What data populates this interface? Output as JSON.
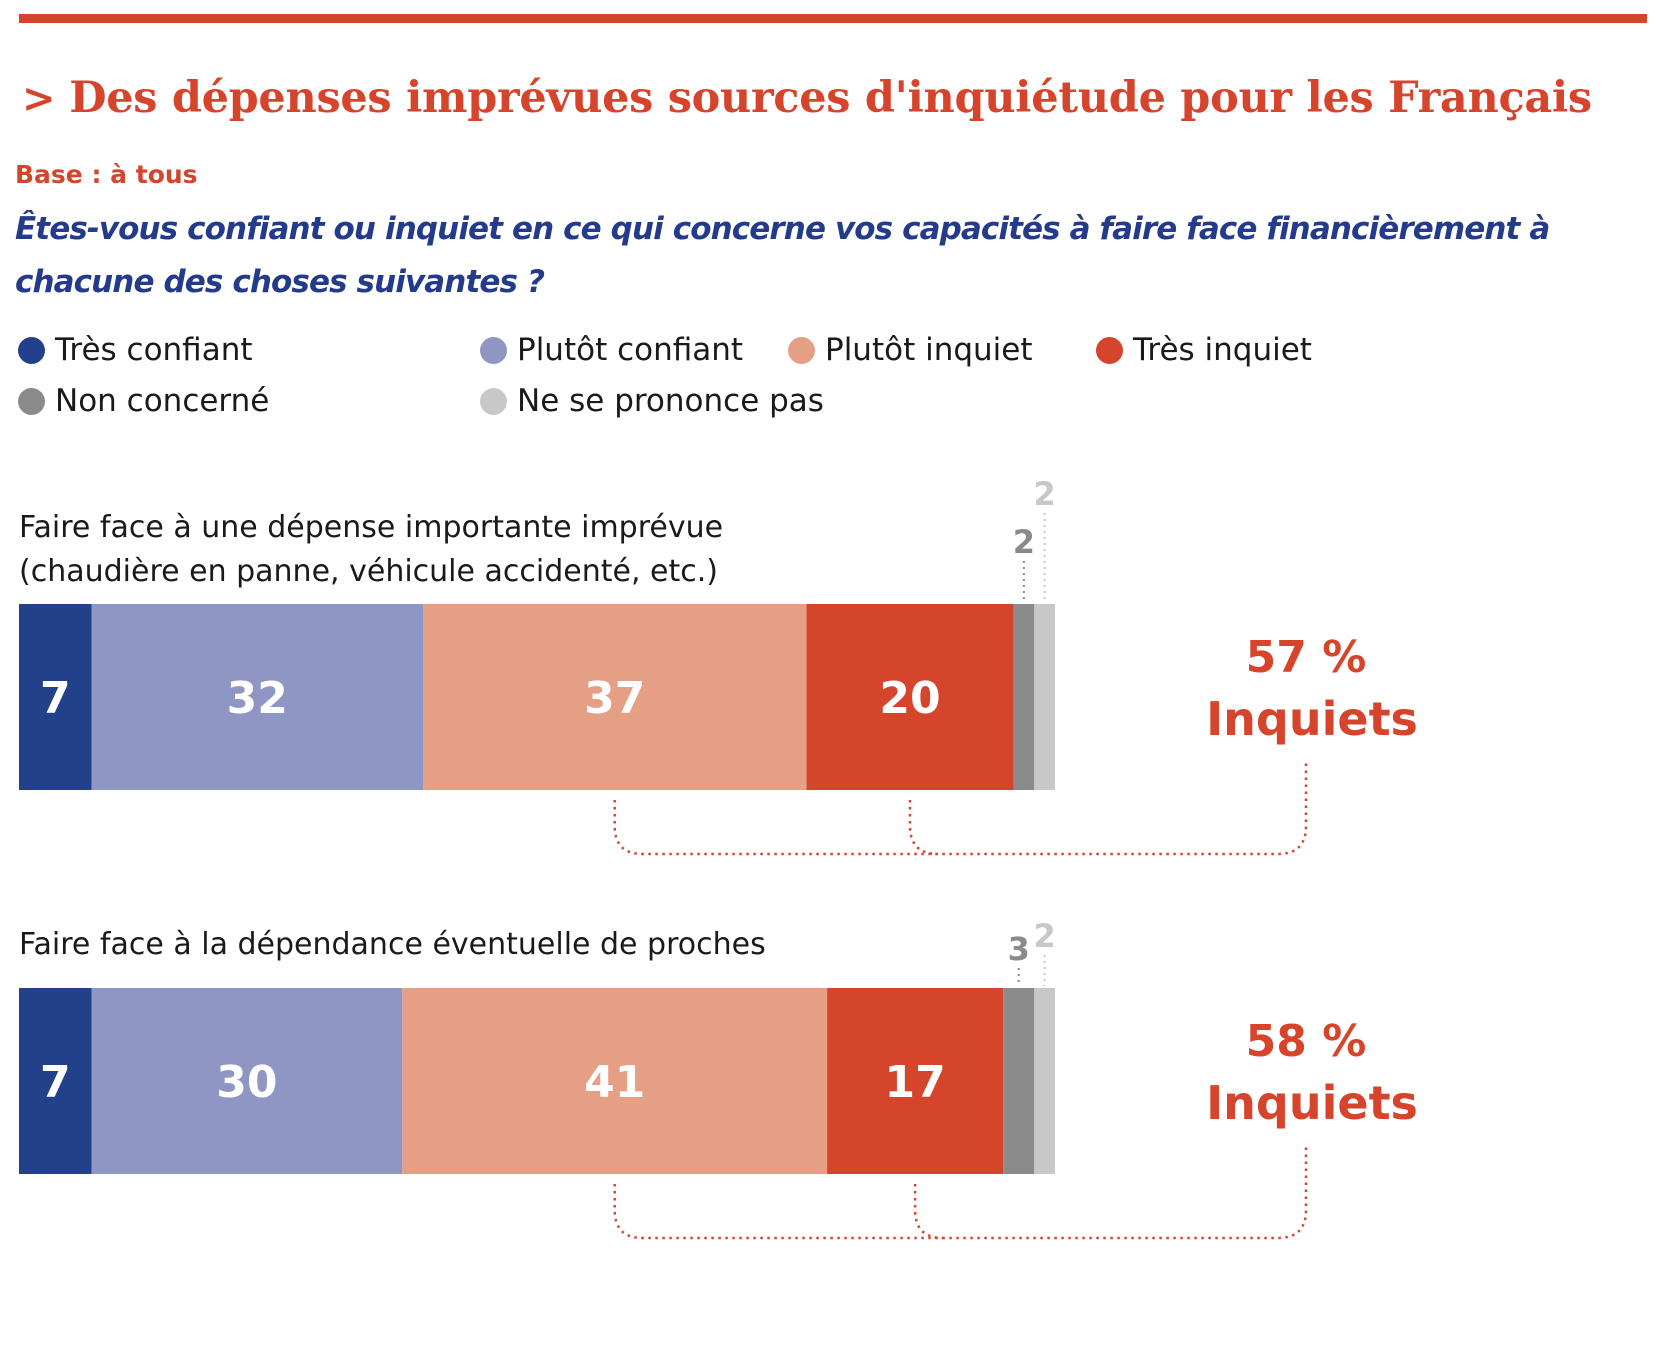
{
  "header": {
    "title": "Des dépenses imprévues sources d'inquiétude pour les Français",
    "base": "Base : à tous",
    "question": "Êtes-vous confiant ou inquiet en ce qui concerne vos capacités à faire face financièrement à chacune des choses suivantes ?"
  },
  "colors": {
    "accent": "#d7442c",
    "question": "#233b8a",
    "tres_confiant": "#23418b",
    "plutot_confiant": "#9096c4",
    "plutot_inquiet": "#e59f84",
    "tres_inquiet": "#d5452c",
    "non_concerne": "#8a8a8a",
    "nspp": "#c8c8c8"
  },
  "chart_data": {
    "type": "bar",
    "orientation": "horizontal",
    "stacked": true,
    "unit": "%",
    "legend_position": "top",
    "categories": [
      "Faire face à une dépense importante imprévue (chaudière en panne, véhicule accidenté, etc.)",
      "Faire face à la dépendance éventuelle de proches"
    ],
    "category_lines": [
      [
        "Faire face à une dépense importante imprévue",
        "(chaudière en panne, véhicule accidenté, etc.)"
      ],
      [
        "Faire face à la dépendance éventuelle de proches"
      ]
    ],
    "series": [
      {
        "name": "Très confiant",
        "values": [
          7,
          7
        ]
      },
      {
        "name": "Plutôt confiant",
        "values": [
          32,
          30
        ]
      },
      {
        "name": "Plutôt inquiet",
        "values": [
          37,
          41
        ]
      },
      {
        "name": "Très inquiet",
        "values": [
          20,
          17
        ]
      },
      {
        "name": "Non concerné",
        "values": [
          2,
          3
        ]
      },
      {
        "name": "Ne se prononce pas",
        "values": [
          2,
          2
        ]
      }
    ],
    "totals": [
      {
        "value": "57 %",
        "label": "Inquiets"
      },
      {
        "value": "58 %",
        "label": "Inquiets"
      }
    ]
  }
}
